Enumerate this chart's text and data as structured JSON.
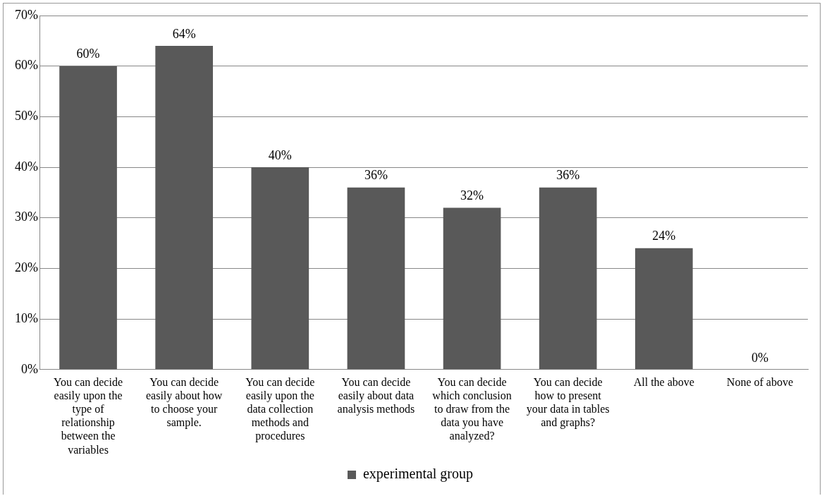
{
  "chart_data": {
    "type": "bar",
    "categories": [
      "You can decide easily upon the type of relationship between the variables",
      "You can decide easily about how to choose your sample.",
      "You can decide easily upon the data collection methods and procedures",
      "You can decide easily about data analysis methods",
      "You can decide which conclusion to draw from the data you have analyzed?",
      "You can decide how to present your data in tables and graphs?",
      "All the above",
      "None of above"
    ],
    "series": [
      {
        "name": "experimental group",
        "color": "#595959",
        "values": [
          60,
          64,
          40,
          36,
          32,
          36,
          24,
          0
        ],
        "value_labels": [
          "60%",
          "64%",
          "40%",
          "36%",
          "32%",
          "36%",
          "24%",
          "0%"
        ]
      }
    ],
    "ylim": [
      0,
      70
    ],
    "yticks": [
      {
        "value": 0,
        "label": "0%"
      },
      {
        "value": 10,
        "label": "10%"
      },
      {
        "value": 20,
        "label": "20%"
      },
      {
        "value": 30,
        "label": "30%"
      },
      {
        "value": 40,
        "label": "40%"
      },
      {
        "value": 50,
        "label": "50%"
      },
      {
        "value": 60,
        "label": "60%"
      },
      {
        "value": 70,
        "label": "70%"
      }
    ],
    "grid": "y",
    "legend": "bottom"
  }
}
